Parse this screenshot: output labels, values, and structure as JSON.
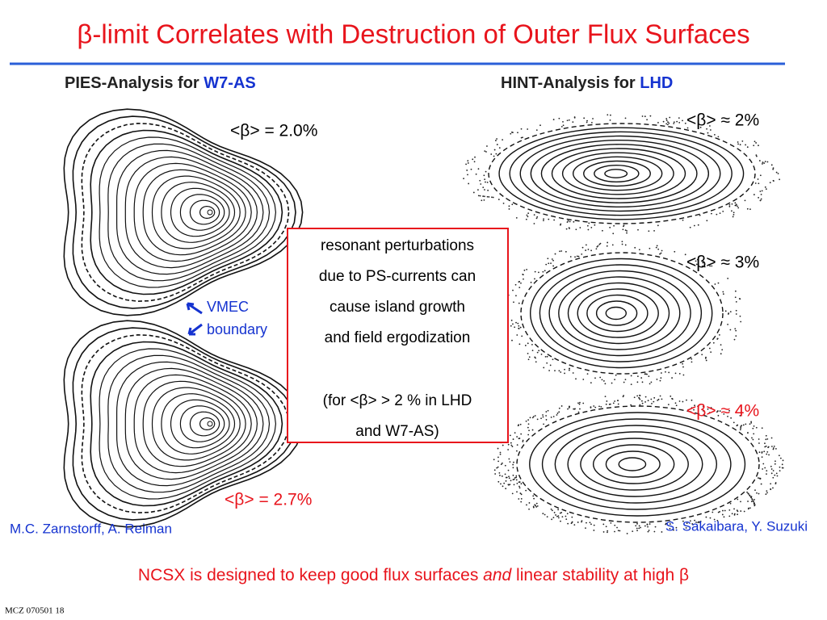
{
  "header": {
    "title": "β-limit Correlates with Destruction of Outer Flux Surfaces"
  },
  "left": {
    "heading": "PIES-Analysis for ",
    "heading_device": "W7-AS",
    "label_top": "<β> = 2.0%",
    "label_bottom": "<β> = 2.7%",
    "vmec": "VMEC",
    "boundary": "boundary",
    "credit": "M.C. Zarnstorff, A. Reiman"
  },
  "right": {
    "heading": "HINT-Analysis for ",
    "heading_device": "LHD",
    "label_1": "<β> ≈ 2%",
    "label_2": "<β> ≈ 3%",
    "label_3": "<β> ≈ 4%",
    "credit": "S. Sakaibara, Y. Suzuki"
  },
  "box": {
    "lines": [
      "resonant perturbations",
      "due to PS-currents can",
      "cause island growth",
      "and field  ergodization",
      "(for <β> > 2 % in LHD",
      "and W7-AS)"
    ]
  },
  "footer": {
    "statement_pre": "NCSX is designed to keep good flux surfaces ",
    "statement_em": "and",
    "statement_post": " linear stability at high β",
    "slide_id": "MCZ 070501  18"
  }
}
